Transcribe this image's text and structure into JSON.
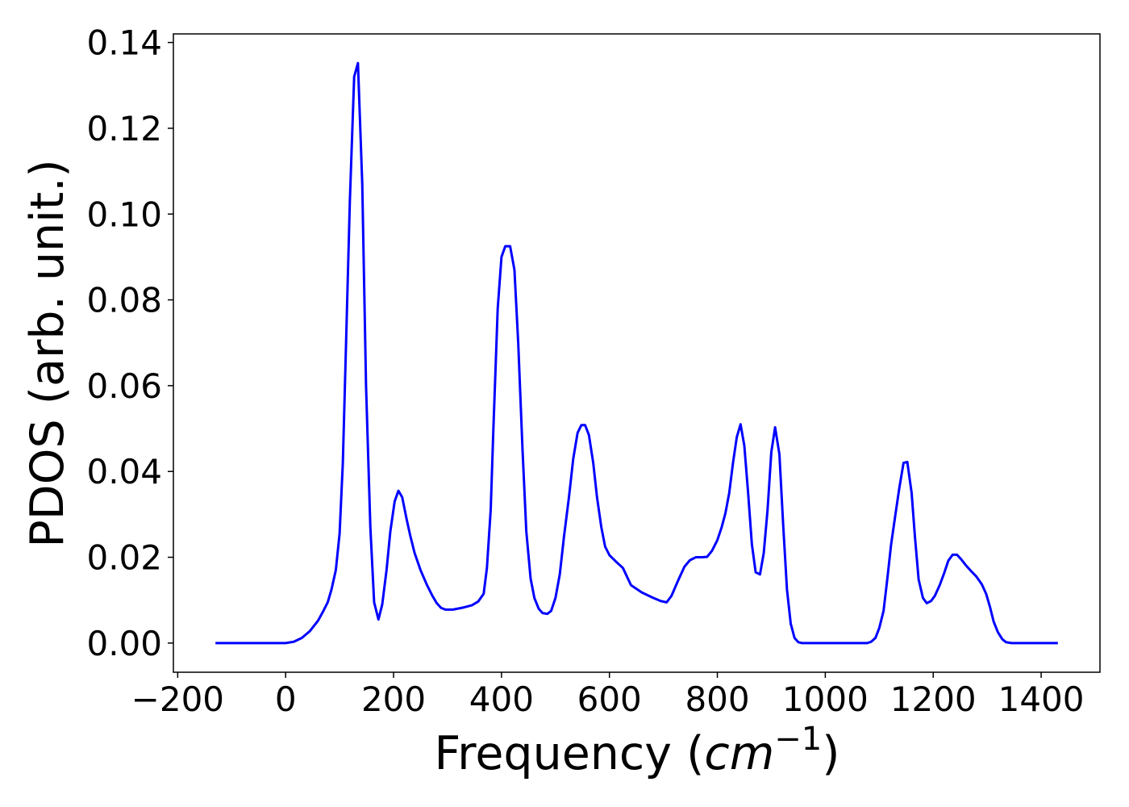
{
  "chart_data": {
    "type": "line",
    "xlabel": {
      "text": "Frequency (",
      "math": "cm",
      "sup": "−1",
      "close": ")"
    },
    "ylabel": "PDOS (arb. unit.)",
    "color": "#0000ff",
    "xlim": [
      -208,
      1509
    ],
    "ylim": [
      -0.0068,
      0.142
    ],
    "xticks": [
      {
        "value": -200,
        "label": "−200"
      },
      0,
      200,
      400,
      600,
      800,
      1000,
      1200,
      1400
    ],
    "yticks": [
      {
        "value": 0,
        "label": "0.00"
      },
      {
        "value": 0.02,
        "label": "0.02"
      },
      {
        "value": 0.04,
        "label": "0.04"
      },
      {
        "value": 0.06,
        "label": "0.06"
      },
      {
        "value": 0.08,
        "label": "0.08"
      },
      {
        "value": 0.1,
        "label": "0.10"
      },
      {
        "value": 0.12,
        "label": "0.12"
      },
      {
        "value": 0.14,
        "label": "0.14"
      }
    ],
    "x": [
      -130,
      -100,
      -50,
      0,
      15,
      30,
      45,
      60,
      70,
      78,
      85,
      93,
      100,
      106,
      112,
      119,
      127,
      134,
      142,
      149,
      157,
      164,
      172,
      179,
      187,
      194,
      202,
      209,
      216,
      224,
      231,
      239,
      250,
      262,
      272,
      280,
      288,
      296,
      310,
      330,
      345,
      357,
      367,
      373,
      380,
      385,
      393,
      400,
      407,
      416,
      424,
      431,
      439,
      446,
      454,
      461,
      469,
      476,
      485,
      492,
      500,
      508,
      516,
      525,
      533,
      541,
      548,
      555,
      562,
      570,
      577,
      585,
      592,
      600,
      612,
      625,
      640,
      660,
      680,
      695,
      706,
      715,
      727,
      739,
      749,
      760,
      772,
      781,
      790,
      800,
      808,
      815,
      822,
      829,
      836,
      843,
      850,
      857,
      864,
      871,
      879,
      886,
      893,
      900,
      907,
      915,
      922,
      929,
      936,
      943,
      950,
      957,
      970,
      1000,
      1078,
      1085,
      1093,
      1100,
      1108,
      1115,
      1122,
      1130,
      1137,
      1145,
      1152,
      1160,
      1166,
      1173,
      1181,
      1188,
      1196,
      1203,
      1212,
      1220,
      1228,
      1236,
      1244,
      1252,
      1260,
      1270,
      1280,
      1290,
      1298,
      1305,
      1312,
      1320,
      1328,
      1335,
      1345,
      1400,
      1431
    ],
    "values": [
      0,
      0,
      0,
      0,
      0.0003,
      0.0012,
      0.0028,
      0.0052,
      0.0075,
      0.0095,
      0.0125,
      0.017,
      0.0255,
      0.042,
      0.07,
      0.103,
      0.132,
      0.1352,
      0.107,
      0.06,
      0.027,
      0.0095,
      0.0055,
      0.009,
      0.017,
      0.026,
      0.033,
      0.0355,
      0.034,
      0.029,
      0.025,
      0.021,
      0.017,
      0.0135,
      0.011,
      0.0093,
      0.0082,
      0.0078,
      0.0078,
      0.0083,
      0.0088,
      0.0097,
      0.0115,
      0.0175,
      0.031,
      0.05,
      0.078,
      0.09,
      0.0925,
      0.0925,
      0.087,
      0.07,
      0.045,
      0.026,
      0.015,
      0.0105,
      0.008,
      0.007,
      0.0068,
      0.0075,
      0.0105,
      0.016,
      0.025,
      0.034,
      0.043,
      0.049,
      0.0508,
      0.0508,
      0.0485,
      0.042,
      0.034,
      0.027,
      0.0225,
      0.0205,
      0.019,
      0.0175,
      0.0135,
      0.0118,
      0.0106,
      0.0098,
      0.0095,
      0.011,
      0.0145,
      0.0178,
      0.0193,
      0.02,
      0.02,
      0.0201,
      0.0215,
      0.024,
      0.027,
      0.0303,
      0.035,
      0.042,
      0.048,
      0.051,
      0.046,
      0.035,
      0.023,
      0.0165,
      0.016,
      0.021,
      0.031,
      0.0445,
      0.0503,
      0.044,
      0.0275,
      0.0125,
      0.0045,
      0.0012,
      0.0002,
      0,
      0,
      0,
      0,
      0.0003,
      0.0012,
      0.0035,
      0.0075,
      0.015,
      0.023,
      0.03,
      0.036,
      0.042,
      0.0422,
      0.035,
      0.025,
      0.0148,
      0.0105,
      0.0093,
      0.0098,
      0.011,
      0.0135,
      0.0162,
      0.0192,
      0.0206,
      0.0206,
      0.0195,
      0.0182,
      0.0168,
      0.0155,
      0.0137,
      0.0115,
      0.0085,
      0.005,
      0.0025,
      0.0009,
      0.0002,
      0,
      0,
      0
    ]
  }
}
